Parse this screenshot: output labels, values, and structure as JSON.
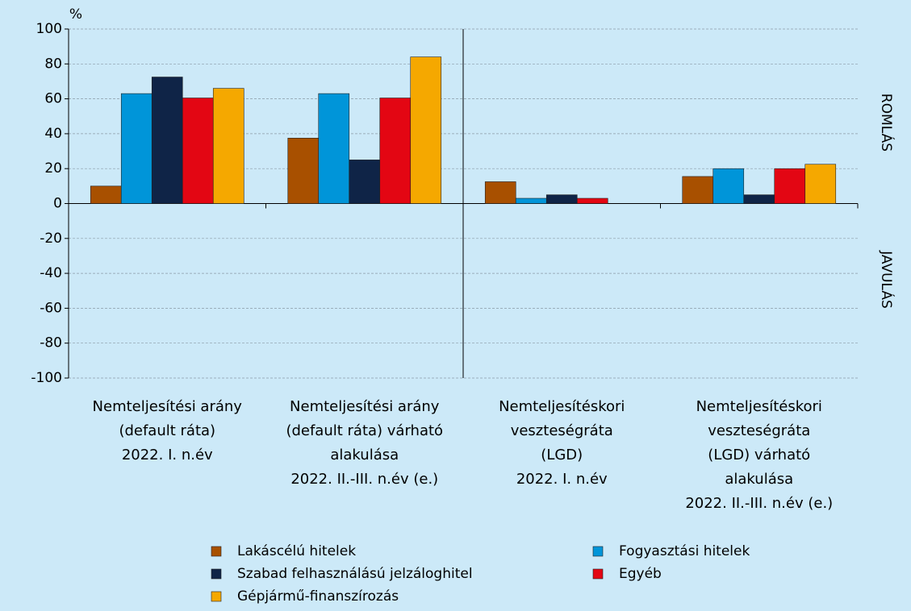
{
  "chart_data": {
    "type": "bar",
    "y_label": "%",
    "annotations": [
      "ROMLÁS",
      "JAVULÁS"
    ],
    "categories": [
      [
        "Nemteljesítési arány",
        "(default ráta)",
        "2022. I. n.év"
      ],
      [
        "Nemteljesítési arány",
        "(default ráta) várható",
        "alakulása",
        "2022. II.-III. n.év (e.)"
      ],
      [
        "Nemteljesítéskori",
        "veszteségráta",
        "(LGD)",
        "2022. I. n.év"
      ],
      [
        "Nemteljesítéskori",
        "veszteségráta",
        "(LGD) várható",
        "alakulása",
        "2022. II.-III. n.év (e.)"
      ]
    ],
    "series": [
      {
        "name": "Lakáscélú hitelek",
        "color": "#a85000",
        "values": [
          10,
          37.5,
          12.5,
          15.5
        ]
      },
      {
        "name": "Fogyasztási hitelek",
        "color": "#0095d9",
        "values": [
          63,
          63,
          3,
          20
        ]
      },
      {
        "name": "Szabad felhasználású jelzáloghitel",
        "color": "#0f2447",
        "values": [
          72.5,
          25,
          5,
          5
        ]
      },
      {
        "name": "Egyéb",
        "color": "#e30613",
        "values": [
          60.5,
          60.5,
          3,
          20
        ]
      },
      {
        "name": "Gépjármű-finanszírozás",
        "color": "#f5a800",
        "values": [
          66,
          84,
          0,
          22.5
        ]
      }
    ],
    "ylim": [
      -100,
      100
    ],
    "yticks": [
      -100,
      -80,
      -60,
      -40,
      -20,
      0,
      20,
      40,
      60,
      80,
      100
    ],
    "grid": true
  }
}
